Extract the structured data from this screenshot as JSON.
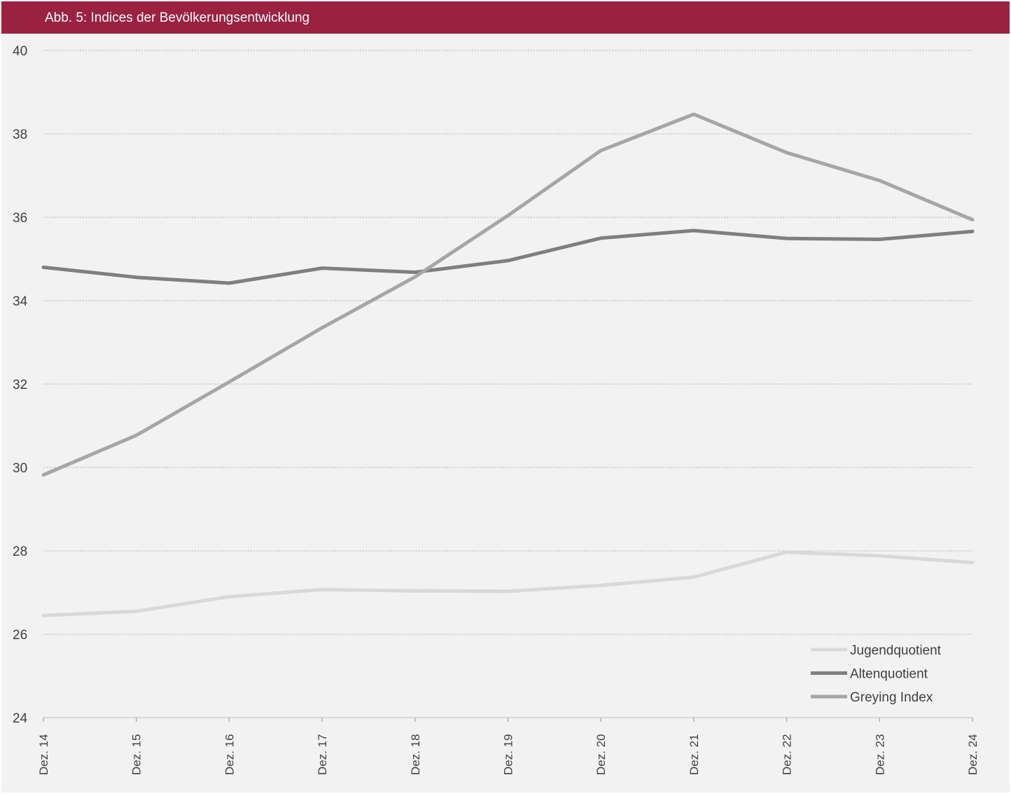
{
  "title": "Abb. 5: Indices der Bevölkerungsentwicklung",
  "colors": {
    "header": "#9b2140",
    "background": "#f2f2f2",
    "grid": "#b5b5b5",
    "Jugendquotient": "#d9d9d9",
    "Altenquotient": "#7f7f7f",
    "Greying Index": "#a6a6a6"
  },
  "chart_data": {
    "type": "line",
    "title": "Abb. 5: Indices der Bevölkerungsentwicklung",
    "xlabel": "",
    "ylabel": "",
    "x": [
      "Dez. 14",
      "Dez. 15",
      "Dez. 16",
      "Dez. 17",
      "Dez. 18",
      "Dez. 19",
      "Dez. 20",
      "Dez. 21",
      "Dez. 22",
      "Dez. 23",
      "Dez. 24"
    ],
    "ylim": [
      24,
      40
    ],
    "yticks": [
      "24",
      "26",
      "28",
      "30",
      "32",
      "34",
      "36",
      "38",
      "40"
    ],
    "grid": true,
    "legend_position": "bottom-right",
    "series": [
      {
        "name": "Jugendquotient",
        "values": [
          26.45,
          26.55,
          26.9,
          27.07,
          27.04,
          27.03,
          27.17,
          27.37,
          27.97,
          27.88,
          27.72
        ]
      },
      {
        "name": "Altenquotient",
        "values": [
          34.8,
          34.56,
          34.42,
          34.78,
          34.68,
          34.96,
          35.5,
          35.68,
          35.49,
          35.47,
          35.66
        ]
      },
      {
        "name": "Greying Index",
        "values": [
          29.82,
          30.77,
          32.05,
          33.35,
          34.57,
          36.04,
          37.6,
          38.47,
          37.55,
          36.88,
          35.94
        ]
      }
    ]
  }
}
